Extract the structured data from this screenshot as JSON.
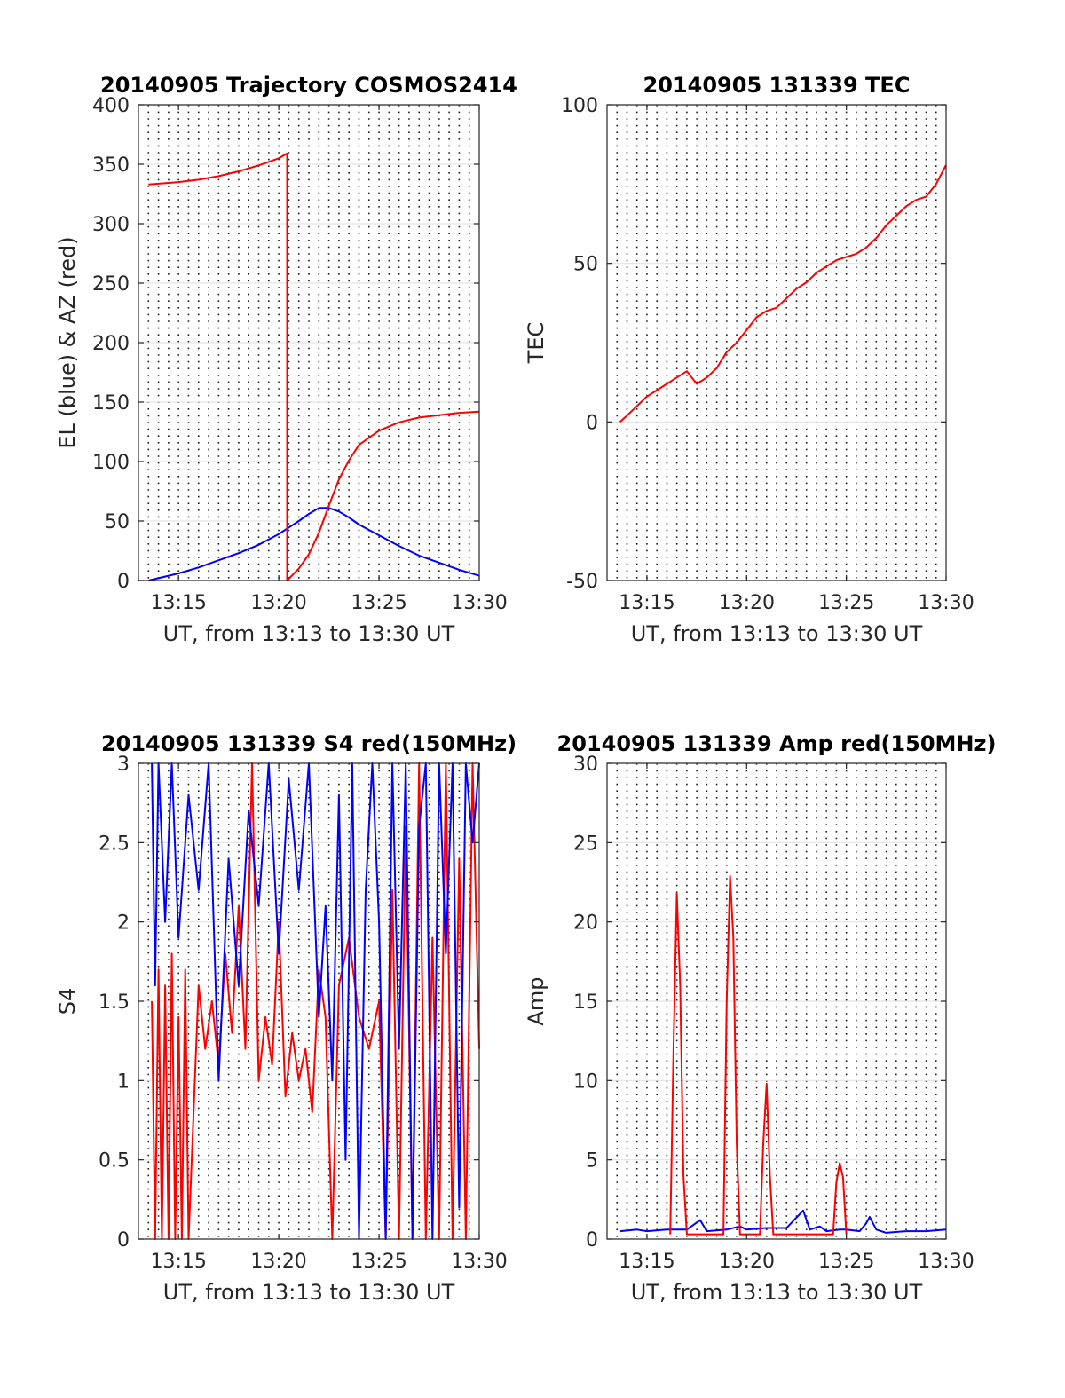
{
  "figure": {
    "background": "#ffffff"
  },
  "chart_data": [
    {
      "type": "line",
      "title": "20140905 Trajectory COSMOS2414",
      "xlabel": "UT, from 13:13 to 13:30 UT",
      "ylabel": "EL (blue) & AZ (red)",
      "xlim": [
        "13:13",
        "13:30"
      ],
      "ylim": [
        0,
        400
      ],
      "xticks": [
        "13:15",
        "13:20",
        "13:25",
        "13:30"
      ],
      "yticks": [
        "0",
        "50",
        "100",
        "150",
        "200",
        "250",
        "300",
        "350",
        "400"
      ],
      "grid": true,
      "series": [
        {
          "color": "#0000ff",
          "x": [
            "13:13:30",
            "13:15:00",
            "13:16:00",
            "13:17:00",
            "13:18:00",
            "13:19:00",
            "13:20:00",
            "13:21:00",
            "13:21:30",
            "13:22:00",
            "13:22:30",
            "13:23:00",
            "13:23:30",
            "13:24:00",
            "13:25:00",
            "13:26:00",
            "13:27:00",
            "13:28:00",
            "13:29:00",
            "13:30:00"
          ],
          "y": [
            0,
            6,
            11,
            17,
            23,
            30,
            39,
            50,
            56,
            61,
            61,
            58,
            53,
            47,
            38,
            29,
            21,
            15,
            9,
            4
          ]
        },
        {
          "color": "#ff0000",
          "x": [
            "13:13:30",
            "13:15:00",
            "13:16:00",
            "13:17:00",
            "13:18:00",
            "13:19:00",
            "13:20:00",
            "13:20:25",
            "13:20:25",
            "13:21:00",
            "13:21:30",
            "13:22:00",
            "13:22:30",
            "13:23:00",
            "13:23:30",
            "13:24:00",
            "13:25:00",
            "13:26:00",
            "13:27:00",
            "13:28:00",
            "13:29:00",
            "13:30:00"
          ],
          "y": [
            333,
            335,
            337,
            340,
            344,
            349,
            355,
            359,
            0,
            10,
            22,
            40,
            63,
            85,
            101,
            114,
            126,
            133,
            137,
            139,
            141,
            142
          ]
        }
      ]
    },
    {
      "type": "line",
      "title": "20140905 131339 TEC",
      "xlabel": "UT, from 13:13 to 13:30 UT",
      "ylabel": "TEC",
      "xlim": [
        "13:13",
        "13:30"
      ],
      "ylim": [
        -50,
        100
      ],
      "xticks": [
        "13:15",
        "13:20",
        "13:25",
        "13:30"
      ],
      "yticks": [
        "-50",
        "0",
        "50",
        "100"
      ],
      "grid": true,
      "series": [
        {
          "color": "#ff0000",
          "x": [
            "13:13:39",
            "13:14:00",
            "13:14:30",
            "13:15:00",
            "13:15:30",
            "13:16:00",
            "13:16:30",
            "13:17:00",
            "13:17:30",
            "13:18:00",
            "13:18:30",
            "13:19:00",
            "13:19:30",
            "13:20:00",
            "13:20:30",
            "13:21:00",
            "13:21:30",
            "13:22:00",
            "13:22:30",
            "13:23:00",
            "13:23:30",
            "13:24:00",
            "13:24:30",
            "13:25:00",
            "13:25:30",
            "13:26:00",
            "13:26:30",
            "13:27:00",
            "13:27:30",
            "13:28:00",
            "13:28:30",
            "13:29:00",
            "13:29:30",
            "13:30:00"
          ],
          "y": [
            0,
            2,
            5,
            8,
            10,
            12,
            14,
            16,
            12,
            14,
            17,
            22,
            25,
            29,
            33,
            35,
            36,
            39,
            42,
            44,
            47,
            49,
            51,
            52,
            53,
            55,
            58,
            62,
            65,
            68,
            70,
            71,
            75,
            81
          ]
        }
      ]
    },
    {
      "type": "line",
      "title": "20140905 131339 S4 red(150MHz)",
      "xlabel": "UT, from 13:13 to 13:30 UT",
      "ylabel": "S4",
      "xlim": [
        "13:13",
        "13:30"
      ],
      "ylim": [
        0,
        3
      ],
      "xticks": [
        "13:15",
        "13:20",
        "13:25",
        "13:30"
      ],
      "yticks": [
        "0",
        "0.5",
        "1",
        "1.5",
        "2",
        "2.5",
        "3"
      ],
      "grid": true,
      "series": [
        {
          "color": "#ff0000",
          "x": [
            "13:13:40",
            "13:13:50",
            "13:14:00",
            "13:14:10",
            "13:14:20",
            "13:14:30",
            "13:14:40",
            "13:14:50",
            "13:15:00",
            "13:15:10",
            "13:15:20",
            "13:15:30",
            "13:16:00",
            "13:16:20",
            "13:16:40",
            "13:17:00",
            "13:17:20",
            "13:17:40",
            "13:18:00",
            "13:18:20",
            "13:18:40",
            "13:19:00",
            "13:19:20",
            "13:19:40",
            "13:20:00",
            "13:20:20",
            "13:20:40",
            "13:21:00",
            "13:21:20",
            "13:21:40",
            "13:22:00",
            "13:22:20",
            "13:22:40",
            "13:23:00",
            "13:23:30",
            "13:24:00",
            "13:24:30",
            "13:25:00",
            "13:25:20",
            "13:25:40",
            "13:26:00",
            "13:26:20",
            "13:26:40",
            "13:27:00",
            "13:27:20",
            "13:27:40",
            "13:28:00",
            "13:28:20",
            "13:28:40",
            "13:29:00",
            "13:29:20",
            "13:29:40",
            "13:30:00"
          ],
          "y": [
            1.5,
            0,
            1.7,
            0,
            1.6,
            0,
            1.8,
            0,
            1.4,
            0,
            1.7,
            0,
            1.6,
            1.2,
            1.5,
            1.1,
            1.8,
            1.3,
            2.1,
            1.2,
            3.0,
            1.0,
            1.4,
            1.1,
            2.0,
            0.9,
            1.3,
            1.0,
            1.2,
            0.8,
            1.7,
            1.4,
            0,
            1.6,
            1.9,
            1.4,
            1.2,
            1.5,
            0,
            2.2,
            0,
            2.6,
            0,
            3.0,
            0,
            1.9,
            0,
            3.0,
            0,
            2.4,
            0,
            3.0,
            1.2
          ]
        },
        {
          "color": "#0000ff",
          "x": [
            "13:13:40",
            "13:13:50",
            "13:14:00",
            "13:14:20",
            "13:14:40",
            "13:15:00",
            "13:15:30",
            "13:16:00",
            "13:16:30",
            "13:17:00",
            "13:17:30",
            "13:18:00",
            "13:18:30",
            "13:19:00",
            "13:19:30",
            "13:20:00",
            "13:20:30",
            "13:21:00",
            "13:21:30",
            "13:22:00",
            "13:22:20",
            "13:22:40",
            "13:23:00",
            "13:23:20",
            "13:23:40",
            "13:24:00",
            "13:24:20",
            "13:24:40",
            "13:25:00",
            "13:25:20",
            "13:25:40",
            "13:26:00",
            "13:26:20",
            "13:26:40",
            "13:27:00",
            "13:27:20",
            "13:27:40",
            "13:28:00",
            "13:28:20",
            "13:28:40",
            "13:29:00",
            "13:29:20",
            "13:29:40",
            "13:30:00"
          ],
          "y": [
            3.0,
            1.6,
            3.0,
            2.0,
            3.0,
            1.9,
            2.8,
            2.2,
            3.0,
            1.0,
            2.4,
            1.6,
            2.7,
            2.1,
            3.0,
            1.8,
            2.9,
            2.2,
            3.0,
            1.4,
            2.1,
            1.0,
            2.8,
            0.5,
            3.0,
            0,
            2.2,
            3.0,
            2.0,
            0,
            3.0,
            1.2,
            3.0,
            0,
            2.6,
            3.0,
            0,
            3.0,
            1.8,
            3.0,
            0.2,
            3.0,
            2.5,
            3.0
          ]
        }
      ]
    },
    {
      "type": "line",
      "title": "20140905 131339 Amp red(150MHz)",
      "xlabel": "UT, from 13:13 to 13:30 UT",
      "ylabel": "Amp",
      "xlim": [
        "13:13",
        "13:30"
      ],
      "ylim": [
        0,
        30
      ],
      "xticks": [
        "13:15",
        "13:20",
        "13:25",
        "13:30"
      ],
      "yticks": [
        "0",
        "5",
        "10",
        "15",
        "20",
        "25",
        "30"
      ],
      "grid": true,
      "series": [
        {
          "color": "#0000ff",
          "x": [
            "13:13:40",
            "13:14:30",
            "13:15:00",
            "13:16:00",
            "13:17:00",
            "13:17:40",
            "13:18:00",
            "13:19:00",
            "13:19:40",
            "13:20:00",
            "13:21:00",
            "13:22:00",
            "13:22:50",
            "13:23:10",
            "13:23:40",
            "13:24:00",
            "13:24:40",
            "13:25:00",
            "13:25:40",
            "13:26:00",
            "13:26:10",
            "13:26:30",
            "13:27:00",
            "13:28:00",
            "13:29:00",
            "13:30:00"
          ],
          "y": [
            0.5,
            0.6,
            0.5,
            0.6,
            0.6,
            1.2,
            0.5,
            0.6,
            0.8,
            0.6,
            0.7,
            0.7,
            1.8,
            0.6,
            0.8,
            0.5,
            0.6,
            0.6,
            0.5,
            1.0,
            1.4,
            0.6,
            0.4,
            0.5,
            0.5,
            0.6
          ]
        },
        {
          "color": "#ff0000",
          "x": [
            "13:16:10",
            "13:16:20",
            "13:16:30",
            "13:16:40",
            "13:16:50",
            "13:17:00",
            "13:18:50",
            "13:19:00",
            "13:19:10",
            "13:19:20",
            "13:19:30",
            "13:19:40",
            "13:20:40",
            "13:20:50",
            "13:21:00",
            "13:21:10",
            "13:21:20",
            "13:24:20",
            "13:24:30",
            "13:24:40",
            "13:24:50",
            "13:25:00"
          ],
          "y": [
            0.3,
            12,
            21.8,
            16,
            4,
            0.3,
            0.3,
            15,
            22.9,
            19,
            6,
            0.3,
            0.3,
            6,
            9.8,
            4,
            0.3,
            0.3,
            3.6,
            4.8,
            3.9,
            0.3
          ]
        }
      ]
    }
  ]
}
